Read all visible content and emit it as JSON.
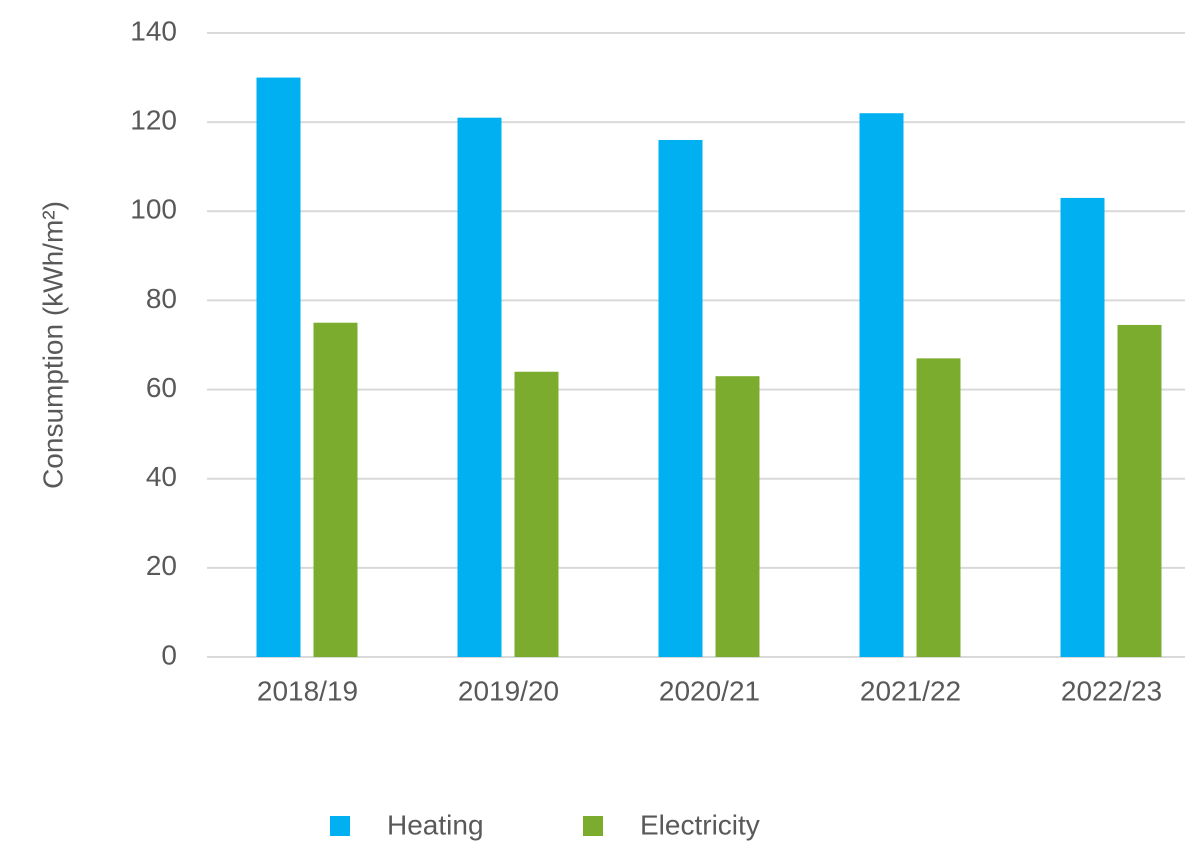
{
  "chart_data": {
    "type": "bar",
    "categories": [
      "2018/19",
      "2019/20",
      "2020/21",
      "2021/22",
      "2022/23"
    ],
    "y_label": "Consumption (kWh/m²)",
    "series": [
      {
        "name": "Heating",
        "color": "#00b0f0",
        "values": [
          130,
          121,
          116,
          122,
          103
        ]
      },
      {
        "name": "Electricity",
        "color": "#7cac2e",
        "values": [
          75,
          64,
          63,
          67,
          74.5
        ]
      }
    ],
    "ylim": [
      0,
      140
    ],
    "yticks": [
      0,
      20,
      40,
      60,
      80,
      100,
      120,
      140
    ],
    "grid": true,
    "legend": "bottom"
  }
}
